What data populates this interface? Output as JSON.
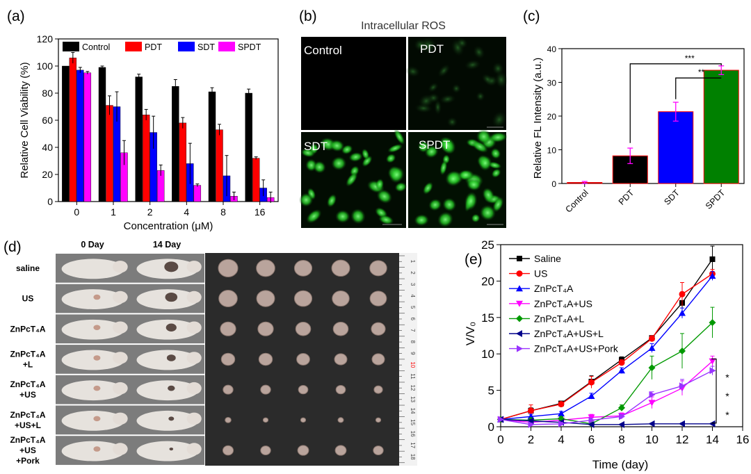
{
  "figure": {
    "panel_labels": [
      "(a)",
      "(b)",
      "(c)",
      "(d)",
      "(e)"
    ]
  },
  "chart_data": [
    {
      "id": "a",
      "type": "bar",
      "xlabel": "Concentration (μM)",
      "ylabel": "Relative Cell Viability (%)",
      "categories": [
        "0",
        "1",
        "2",
        "4",
        "8",
        "16"
      ],
      "ylim": [
        0,
        120
      ],
      "yticks": [
        0,
        20,
        40,
        60,
        80,
        100,
        120
      ],
      "legend_position": "top",
      "series": [
        {
          "name": "Control",
          "color": "#000000",
          "values": [
            100,
            99,
            92,
            85,
            81,
            80
          ],
          "errors": [
            0,
            1,
            2,
            5,
            3,
            3
          ]
        },
        {
          "name": "PDT",
          "color": "#ff0000",
          "values": [
            106,
            71,
            64,
            58,
            53,
            32
          ],
          "errors": [
            4,
            7,
            4,
            4,
            4,
            1
          ]
        },
        {
          "name": "SDT",
          "color": "#0000ff",
          "values": [
            97,
            70,
            51,
            28,
            19,
            10
          ],
          "errors": [
            2,
            11,
            12,
            15,
            15,
            6
          ]
        },
        {
          "name": "SPDT",
          "color": "#ff00ff",
          "values": [
            95,
            36,
            23,
            12,
            4,
            3
          ],
          "errors": [
            1,
            9,
            4,
            1,
            3,
            4
          ]
        }
      ]
    },
    {
      "id": "c",
      "type": "bar",
      "xlabel": "",
      "ylabel": "Relative FL Intensity (a.u.)",
      "categories": [
        "Control",
        "PDT",
        "SDT",
        "SPDT"
      ],
      "colors": [
        "#000000",
        "#000000",
        "#0000ff",
        "#008000"
      ],
      "values": [
        0.3,
        8.2,
        21.3,
        33.6
      ],
      "errors": [
        0.3,
        2.3,
        2.8,
        1.3
      ],
      "ylim": [
        0,
        40
      ],
      "yticks": [
        0,
        10,
        20,
        30,
        40
      ],
      "annotations": [
        "***",
        "**"
      ]
    },
    {
      "id": "e",
      "type": "line",
      "xlabel": "Time (day)",
      "ylabel": "V/V₀",
      "xlim": [
        0,
        16
      ],
      "ylim": [
        0,
        25
      ],
      "xticks": [
        0,
        2,
        4,
        6,
        8,
        10,
        12,
        14,
        16
      ],
      "yticks": [
        0,
        5,
        10,
        15,
        20,
        25
      ],
      "legend_position": "top-left",
      "x": [
        0,
        2,
        4,
        6,
        8,
        10,
        12,
        14
      ],
      "series": [
        {
          "name": "Saline",
          "color": "#000000",
          "marker": "square",
          "values": [
            1,
            2.2,
            3.2,
            6.2,
            9.2,
            12.2,
            17,
            23
          ],
          "errors": [
            0,
            0.4,
            0.3,
            0.8,
            0.4,
            0.3,
            1.5,
            1.8
          ]
        },
        {
          "name": "US",
          "color": "#ff0000",
          "marker": "circle",
          "values": [
            1,
            2.2,
            3.1,
            6.1,
            8.8,
            12.1,
            18.2,
            21
          ],
          "errors": [
            0,
            0.8,
            0.3,
            0.8,
            0.4,
            0.4,
            1.6,
            0.6
          ]
        },
        {
          "name": "ZnPcT₄A",
          "color": "#0000ff",
          "marker": "triangle-up",
          "values": [
            1,
            1.4,
            1.8,
            4.2,
            7.7,
            10.8,
            15.6,
            20.7
          ],
          "errors": [
            0,
            0.3,
            0.3,
            0.4,
            0.4,
            0.6,
            0.7,
            0.6
          ]
        },
        {
          "name": "ZnPcT₄A+US",
          "color": "#ff00ff",
          "marker": "triangle-down",
          "values": [
            1,
            0.6,
            0.9,
            1.3,
            1.5,
            3.3,
            5.3,
            9
          ],
          "errors": [
            0,
            0.2,
            0.3,
            0.4,
            0.4,
            0.8,
            1,
            0.7
          ]
        },
        {
          "name": "ZnPcT₄A+L",
          "color": "#009900",
          "marker": "diamond",
          "values": [
            1,
            0.9,
            1.1,
            0.4,
            2.6,
            8.1,
            10.4,
            14.3
          ],
          "errors": [
            0,
            0.3,
            0.3,
            0.2,
            0.4,
            1.6,
            2.4,
            2.1
          ]
        },
        {
          "name": "ZnPcT₄A+US+L",
          "color": "#00008b",
          "marker": "triangle-left",
          "values": [
            1,
            0.8,
            0.6,
            0.3,
            0.3,
            0.4,
            0.4,
            0.4
          ],
          "errors": [
            0,
            0.2,
            0.2,
            0.1,
            0.1,
            0.1,
            0.1,
            0.1
          ]
        },
        {
          "name": "ZnPcT₄A+US+Pork",
          "color": "#9933ff",
          "marker": "triangle-right",
          "values": [
            1,
            0.3,
            0.4,
            0.9,
            1.4,
            4.4,
            5.6,
            7.7
          ],
          "errors": [
            0,
            0.2,
            0.2,
            0.3,
            0.3,
            0.4,
            0.9,
            0.6
          ]
        }
      ],
      "annotations": [
        "*",
        "*",
        "*"
      ]
    }
  ],
  "panel_b": {
    "title": "Intracellular ROS",
    "quadrants": [
      "Control",
      "PDT",
      "SDT",
      "SPDT"
    ]
  },
  "panel_d": {
    "columns": [
      "0 Day",
      "14 Day"
    ],
    "rows": [
      [
        "saline"
      ],
      [
        "US"
      ],
      [
        "ZnPcT₄A"
      ],
      [
        "ZnPcT₄A",
        "+L"
      ],
      [
        "ZnPcT₄A",
        "+US"
      ],
      [
        "ZnPcT₄A",
        "+US+L"
      ],
      [
        "ZnPcT₄A",
        "+US",
        "+Pork"
      ]
    ],
    "tumor_sizes": [
      [
        0.78,
        0.74,
        0.7,
        0.72,
        0.68
      ],
      [
        0.74,
        0.72,
        0.7,
        0.68,
        0.66
      ],
      [
        0.62,
        0.62,
        0.6,
        0.6,
        0.56
      ],
      [
        0.54,
        0.54,
        0.52,
        0.5,
        0.5
      ],
      [
        0.4,
        0.4,
        0.38,
        0.38,
        0.34
      ],
      [
        0.24,
        0.2,
        0.2,
        0.22,
        0.2
      ],
      [
        0.42,
        0.4,
        0.44,
        0.44,
        0.4
      ]
    ],
    "ruler_numbers": [
      "1",
      "2",
      "3",
      "4",
      "5",
      "6",
      "7",
      "8",
      "9",
      "10",
      "11",
      "12",
      "13",
      "14",
      "15",
      "16",
      "17",
      "18"
    ],
    "colors": {
      "mouse": "#e6e2dd",
      "background": "#2b2b2b",
      "tumor": "#b9a49c",
      "ruler": "#f2f2f2",
      "ruler_highlight": "#ff0000"
    }
  }
}
